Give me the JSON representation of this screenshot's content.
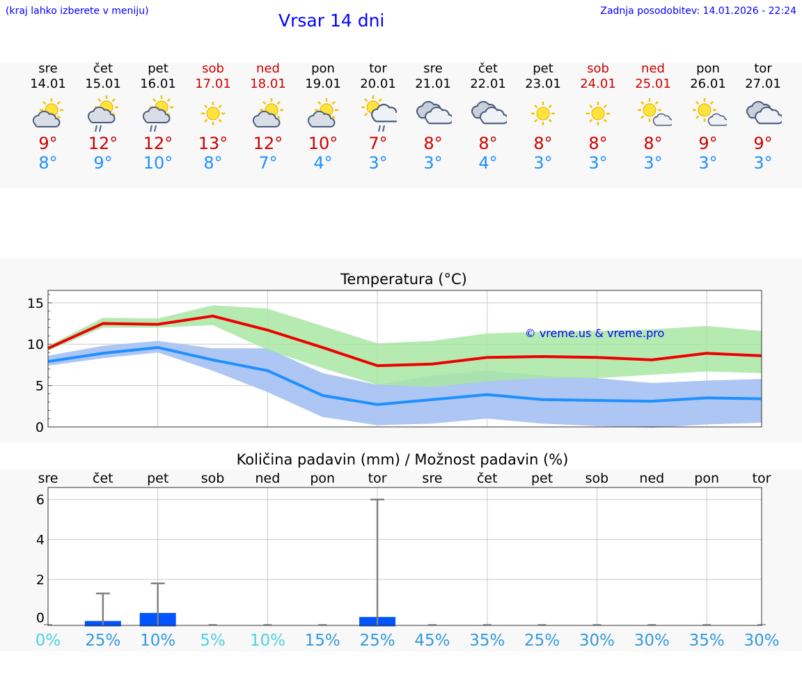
{
  "header": {
    "hint": "(kraj lahko izberete v meniju)",
    "title": "Vrsar 14 dni",
    "updated": "Zadnja posodobitev: 14.01.2026 - 22:24"
  },
  "days": [
    {
      "name": "sre",
      "date": "14.01",
      "icon": "sun-cloud",
      "tmax": "9°",
      "tmin": "8°",
      "weekend": false
    },
    {
      "name": "čet",
      "date": "15.01",
      "icon": "sun-cloud-rain",
      "tmax": "12°",
      "tmin": "9°",
      "weekend": false
    },
    {
      "name": "pet",
      "date": "16.01",
      "icon": "sun-cloud-rain",
      "tmax": "12°",
      "tmin": "10°",
      "weekend": false
    },
    {
      "name": "sob",
      "date": "17.01",
      "icon": "sun",
      "tmax": "13°",
      "tmin": "8°",
      "weekend": true
    },
    {
      "name": "ned",
      "date": "18.01",
      "icon": "sun-cloud",
      "tmax": "12°",
      "tmin": "7°",
      "weekend": true
    },
    {
      "name": "pon",
      "date": "19.01",
      "icon": "sun-cloud",
      "tmax": "10°",
      "tmin": "4°",
      "weekend": false
    },
    {
      "name": "tor",
      "date": "20.01",
      "icon": "sun-bigcloud-rain",
      "tmax": "7°",
      "tmin": "3°",
      "weekend": false
    },
    {
      "name": "sre",
      "date": "21.01",
      "icon": "clouds",
      "tmax": "8°",
      "tmin": "3°",
      "weekend": false
    },
    {
      "name": "čet",
      "date": "22.01",
      "icon": "clouds",
      "tmax": "8°",
      "tmin": "4°",
      "weekend": false
    },
    {
      "name": "pet",
      "date": "23.01",
      "icon": "sun",
      "tmax": "8°",
      "tmin": "3°",
      "weekend": false
    },
    {
      "name": "sob",
      "date": "24.01",
      "icon": "sun",
      "tmax": "8°",
      "tmin": "3°",
      "weekend": true
    },
    {
      "name": "ned",
      "date": "25.01",
      "icon": "sun-smallcloud",
      "tmax": "8°",
      "tmin": "3°",
      "weekend": true
    },
    {
      "name": "pon",
      "date": "26.01",
      "icon": "sun-smallcloud",
      "tmax": "9°",
      "tmin": "3°",
      "weekend": false
    },
    {
      "name": "tor",
      "date": "27.01",
      "icon": "clouds",
      "tmax": "9°",
      "tmin": "3°",
      "weekend": false
    }
  ],
  "colors": {
    "title": "#0000ff",
    "max": "#cc0000",
    "min": "#1e90ff",
    "max_band": "#a8e6a3",
    "min_band": "#a9c3f2",
    "bar": "#0055ff",
    "whisker": "#808080",
    "pct_low": "#4dd0e1",
    "pct": "#3399dd"
  },
  "chart_data": [
    {
      "type": "line",
      "title": "Temperatura (°C)",
      "watermark": "© vreme.us & vreme.pro",
      "x": [
        0,
        1,
        2,
        3,
        4,
        5,
        6,
        7,
        8,
        9,
        10,
        11,
        12,
        13
      ],
      "ylim": [
        0,
        16.5
      ],
      "yticks": [
        0,
        5,
        10,
        15
      ],
      "series": [
        {
          "name": "max",
          "values": [
            9.5,
            12.5,
            12.4,
            13.4,
            11.7,
            9.6,
            7.4,
            7.6,
            8.4,
            8.5,
            8.4,
            8.1,
            8.9,
            8.6
          ]
        },
        {
          "name": "min",
          "values": [
            7.9,
            8.9,
            9.6,
            8.1,
            6.8,
            3.8,
            2.7,
            3.3,
            3.9,
            3.3,
            3.2,
            3.1,
            3.5,
            3.4
          ]
        }
      ],
      "bands": [
        {
          "name": "max_range",
          "upper": [
            9.8,
            13.2,
            13.1,
            14.7,
            14.3,
            12.2,
            10.1,
            10.4,
            11.3,
            11.5,
            11.6,
            11.8,
            12.2,
            11.6
          ],
          "lower": [
            9.2,
            12.0,
            12.0,
            12.3,
            9.3,
            7.1,
            5.1,
            4.8,
            5.5,
            5.9,
            5.9,
            6.3,
            6.7,
            6.5
          ]
        },
        {
          "name": "min_range",
          "upper": [
            8.6,
            9.8,
            10.4,
            9.5,
            9.5,
            6.5,
            5.1,
            6.2,
            6.8,
            6.2,
            5.9,
            5.3,
            5.6,
            5.8
          ]
        },
        {
          "name": "min_lower",
          "lower": [
            7.4,
            8.3,
            9.0,
            6.8,
            4.2,
            1.2,
            0.2,
            0.4,
            1.0,
            0.4,
            0.1,
            -0.1,
            0.3,
            0.5
          ]
        }
      ]
    },
    {
      "type": "bar",
      "title": "Količina padavin (mm) / Možnost padavin (%)",
      "categories": [
        "sre",
        "čet",
        "pet",
        "sob",
        "ned",
        "pon",
        "tor",
        "sre",
        "čet",
        "pet",
        "sob",
        "ned",
        "pon",
        "tor"
      ],
      "values": [
        0,
        0.2,
        0.6,
        0,
        0,
        0,
        0.4,
        0,
        0,
        0,
        0,
        0,
        0,
        0
      ],
      "error_high": [
        0,
        1.3,
        1.8,
        0,
        0,
        0,
        6.0,
        0,
        0,
        0,
        0,
        0,
        0,
        0
      ],
      "ylim": [
        -0.3,
        6.6
      ],
      "yticks": [
        0,
        2,
        4,
        6
      ],
      "probability": [
        "0%",
        "25%",
        "10%",
        "5%",
        "10%",
        "15%",
        "25%",
        "45%",
        "35%",
        "25%",
        "30%",
        "30%",
        "35%",
        "30%"
      ],
      "probability_values": [
        0,
        25,
        10,
        5,
        10,
        15,
        25,
        45,
        35,
        25,
        30,
        30,
        35,
        30
      ]
    }
  ]
}
